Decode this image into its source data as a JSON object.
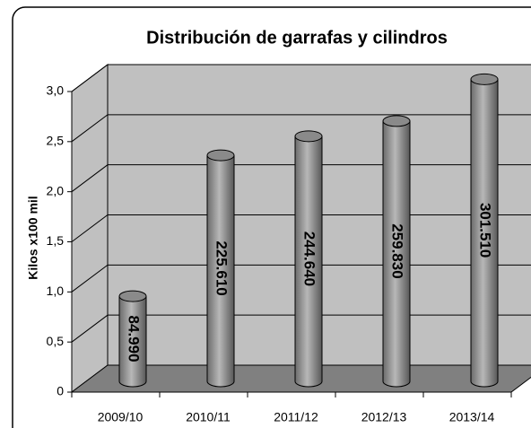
{
  "chart_data": {
    "type": "bar",
    "title": "Distribución de garrafas y cilindros",
    "y_label": "Kilos x100 mil",
    "categories": [
      "2009/10",
      "2010/11",
      "2011/12",
      "2012/13",
      "2013/14"
    ],
    "values": [
      0.8499,
      2.2561,
      2.4464,
      2.5983,
      3.0151
    ],
    "value_labels": [
      "84.990",
      "225.610",
      "244.640",
      "259.830",
      "301.510"
    ],
    "color": "#9a9a9a",
    "ylim": [
      0,
      3
    ],
    "yticks": [
      0,
      {
        "value": 0.5,
        "label": "0,5"
      },
      {
        "value": 1,
        "label": "1,0"
      },
      {
        "value": 1.5,
        "label": "1,5"
      },
      {
        "value": 2,
        "label": "2,0"
      },
      {
        "value": 2.5,
        "label": "2,5"
      },
      {
        "value": 3,
        "label": "3,0"
      }
    ],
    "grid": true
  }
}
